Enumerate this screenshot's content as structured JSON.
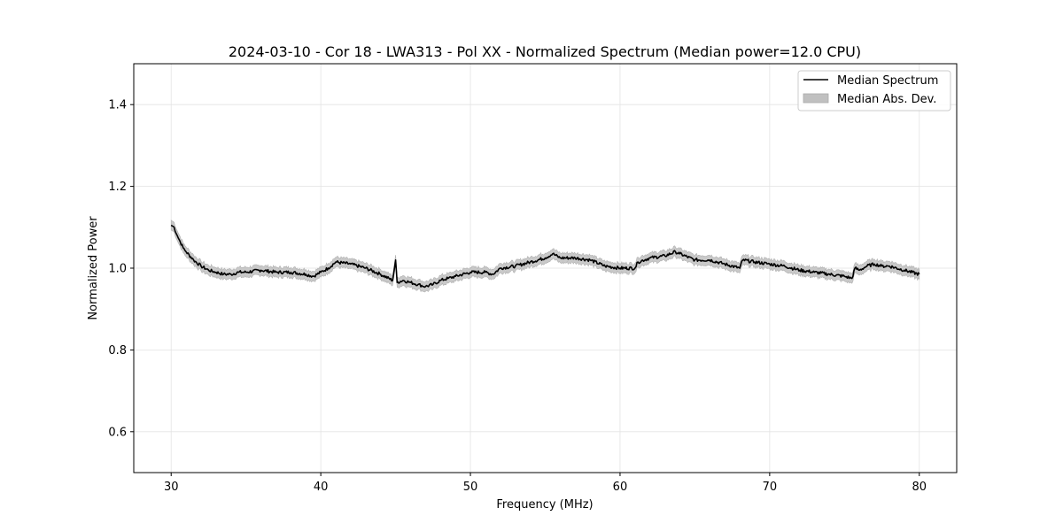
{
  "chart_data": {
    "type": "line",
    "title": "2024-03-10 - Cor 18 - LWA313 - Pol XX - Normalized Spectrum (Median power=12.0 CPU)",
    "xlabel": "Frequency (MHz)",
    "ylabel": "Normalized Power",
    "xlim": [
      27.5,
      82.5
    ],
    "ylim": [
      0.5,
      1.5
    ],
    "xticks": [
      30,
      40,
      50,
      60,
      70,
      80
    ],
    "yticks": [
      0.6,
      0.8,
      1.0,
      1.2,
      1.4
    ],
    "xtick_labels": [
      "30",
      "40",
      "50",
      "60",
      "70",
      "80"
    ],
    "ytick_labels": [
      "0.6",
      "0.8",
      "1.0",
      "1.2",
      "1.4"
    ],
    "grid": true,
    "legend": {
      "position": "top-right",
      "entries": [
        "Median Spectrum",
        "Median Abs. Dev."
      ]
    },
    "series": [
      {
        "name": "Median Spectrum",
        "color": "#000000",
        "x": [
          30.0,
          30.2,
          30.4,
          30.6,
          30.8,
          31.0,
          31.5,
          32.0,
          32.5,
          33.0,
          33.5,
          34.0,
          34.5,
          35.0,
          36.0,
          37.0,
          38.0,
          39.0,
          39.5,
          40.0,
          40.5,
          41.0,
          42.0,
          43.0,
          44.0,
          44.8,
          45.0,
          45.1,
          45.5,
          46.0,
          46.5,
          47.0,
          47.5,
          48.0,
          48.5,
          49.0,
          50.0,
          51.0,
          51.5,
          52.0,
          53.0,
          54.0,
          55.0,
          55.5,
          56.0,
          57.0,
          58.0,
          59.0,
          60.0,
          61.0,
          61.2,
          62.0,
          63.0,
          63.7,
          64.0,
          65.0,
          66.0,
          67.0,
          68.0,
          68.2,
          69.0,
          70.0,
          71.0,
          72.0,
          73.0,
          74.0,
          75.0,
          75.5,
          75.7,
          76.0,
          76.5,
          77.0,
          77.5,
          78.0,
          79.0,
          80.0
        ],
        "y": [
          1.105,
          1.1,
          1.08,
          1.065,
          1.05,
          1.04,
          1.02,
          1.005,
          0.995,
          0.99,
          0.985,
          0.985,
          0.99,
          0.99,
          0.995,
          0.99,
          0.99,
          0.985,
          0.98,
          0.99,
          1.0,
          1.015,
          1.01,
          1.0,
          0.985,
          0.97,
          1.02,
          0.965,
          0.97,
          0.965,
          0.96,
          0.955,
          0.96,
          0.97,
          0.975,
          0.98,
          0.99,
          0.99,
          0.985,
          1.0,
          1.005,
          1.015,
          1.025,
          1.035,
          1.025,
          1.025,
          1.02,
          1.005,
          1.0,
          1.0,
          1.015,
          1.025,
          1.03,
          1.04,
          1.035,
          1.02,
          1.02,
          1.01,
          1.0,
          1.02,
          1.015,
          1.01,
          1.005,
          0.995,
          0.99,
          0.985,
          0.98,
          0.975,
          1.0,
          0.995,
          1.005,
          1.01,
          1.005,
          1.005,
          0.995,
          0.985
        ]
      },
      {
        "name": "Median Abs. Dev.",
        "color": "#c8c8c8",
        "band_halfwidth": 0.012
      }
    ]
  }
}
